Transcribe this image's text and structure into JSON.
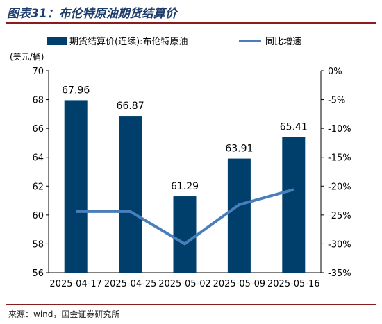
{
  "figure": {
    "title": "图表31：布伦特原油期货结算价",
    "source": "来源：wind，国金证券研究所"
  },
  "chart_data": {
    "type": "bar",
    "categories": [
      "2025-04-17",
      "2025-04-25",
      "2025-05-02",
      "2025-05-09",
      "2025-05-16"
    ],
    "series": [
      {
        "name": "期货结算价(连续):布伦特原油",
        "type": "bar",
        "axis": "left",
        "values": [
          67.96,
          66.87,
          61.29,
          63.91,
          65.41
        ],
        "color": "#003f6c"
      },
      {
        "name": "同比增速",
        "type": "line",
        "axis": "right",
        "values": [
          -24.4,
          -24.4,
          -30.0,
          -23.2,
          -20.6
        ],
        "color": "#4a7ebb"
      }
    ],
    "y_left": {
      "unit": "(美元/桶)",
      "ylim": [
        56,
        70
      ],
      "ticks": [
        "56",
        "58",
        "60",
        "62",
        "64",
        "66",
        "68",
        "70"
      ]
    },
    "y_right": {
      "ylim": [
        -35,
        0
      ],
      "ticks": [
        "0%",
        "-5%",
        "-10%",
        "-15%",
        "-20%",
        "-25%",
        "-30%",
        "-35%"
      ]
    },
    "data_labels": [
      "67.96",
      "66.87",
      "61.29",
      "63.91",
      "65.41"
    ],
    "legend_position": "top",
    "grid": false
  }
}
